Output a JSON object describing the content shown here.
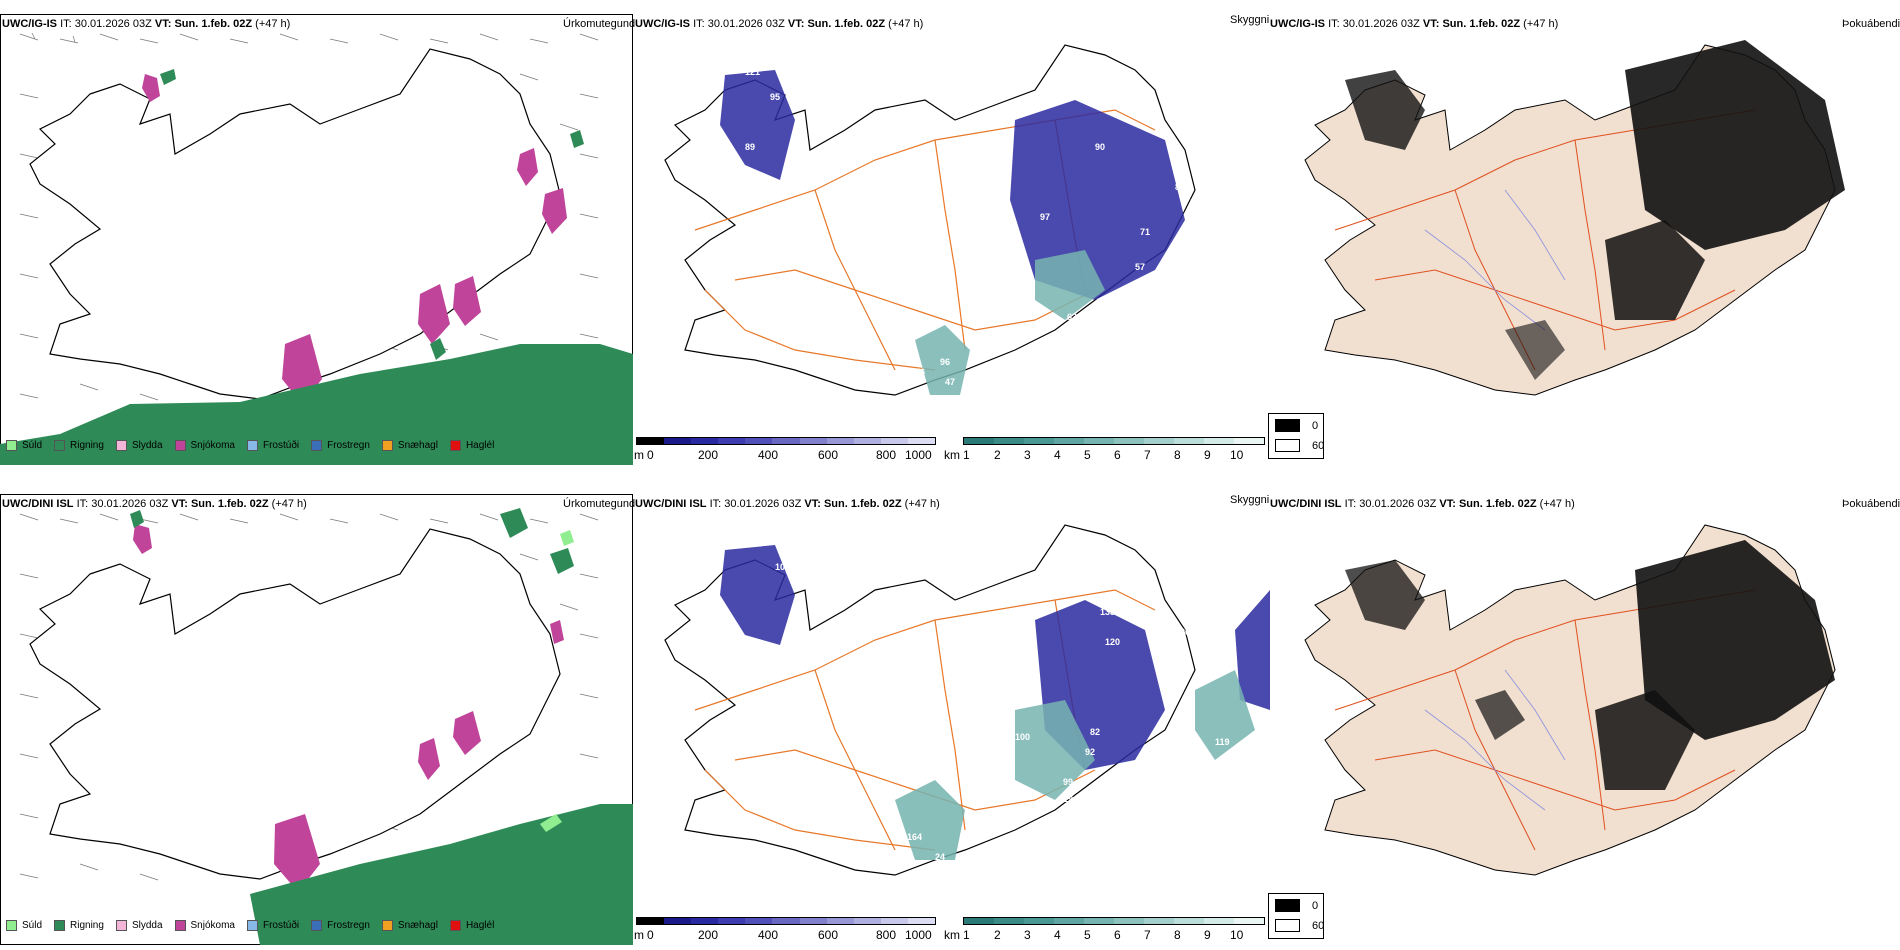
{
  "rows": [
    {
      "model": "UWC/IG-IS",
      "it_label": "IT:",
      "it_time": "30.01.2026 03Z",
      "vt_label": "VT:",
      "vt_time": "Sun. 1.feb. 02Z",
      "lead": "(+47 h)",
      "panels": [
        "Úrkomutegund",
        "Skyggni",
        "Þokuábendi"
      ]
    },
    {
      "model": "UWC/DINI ISL",
      "it_label": "IT:",
      "it_time": "30.01.2026 03Z",
      "vt_label": "VT:",
      "vt_time": "Sun. 1.feb. 02Z",
      "lead": "(+47 h)",
      "panels": [
        "Úrkomutegund",
        "Skyggni",
        "Þokuábendi"
      ]
    }
  ],
  "precip_legend": [
    {
      "label": "Súld",
      "color": "#90ee90"
    },
    {
      "label": "Rigning",
      "color": "#2e8b57"
    },
    {
      "label": "Slydda",
      "color": "#f4b6d8"
    },
    {
      "label": "Snjókoma",
      "color": "#c0449a"
    },
    {
      "label": "Frostúði",
      "color": "#87b8e8"
    },
    {
      "label": "Frostregn",
      "color": "#3a6fb8"
    },
    {
      "label": "Snæhagl",
      "color": "#f0a020"
    },
    {
      "label": "Haglél",
      "color": "#e01010"
    }
  ],
  "vis_colorbar_m": {
    "unit": "m",
    "ticks": [
      "0",
      "200",
      "400",
      "600",
      "800",
      "1000"
    ],
    "colors": [
      "#000000",
      "#1a1a8a",
      "#2a2aa0",
      "#3c3cb0",
      "#5050b8",
      "#6868c2",
      "#8080cc",
      "#9898d6",
      "#b0b0e0",
      "#c8c8ea",
      "#dcdcf2"
    ]
  },
  "vis_colorbar_km": {
    "unit": "km",
    "ticks": [
      "1",
      "2",
      "3",
      "4",
      "5",
      "6",
      "7",
      "8",
      "9",
      "10"
    ],
    "colors": [
      "#2a7a78",
      "#3a8a86",
      "#4a9894",
      "#5fa6a2",
      "#75b4b0",
      "#8cc2be",
      "#a3d0cc",
      "#bbdeda",
      "#d3ece8",
      "#eaf6f4"
    ]
  },
  "fog_key": [
    {
      "value": "0",
      "color": "#000000"
    },
    {
      "value": "60",
      "color": "#ffffff"
    }
  ],
  "colors": {
    "land_fog": "#f1dfcf",
    "roads": "#e8782a",
    "rain": "#2e8b57",
    "snow": "#c0449a"
  },
  "vis_labels_row1": [
    "121",
    "95",
    "12",
    "89",
    "76",
    "96",
    "47",
    "40",
    "91",
    "63",
    "76",
    "90",
    "97",
    "57",
    "89",
    "61",
    "71",
    "53"
  ],
  "vis_labels_row2": [
    "101",
    "164",
    "24",
    "100",
    "99",
    "19",
    "82",
    "92",
    "133",
    "120",
    "75",
    "86",
    "119"
  ]
}
